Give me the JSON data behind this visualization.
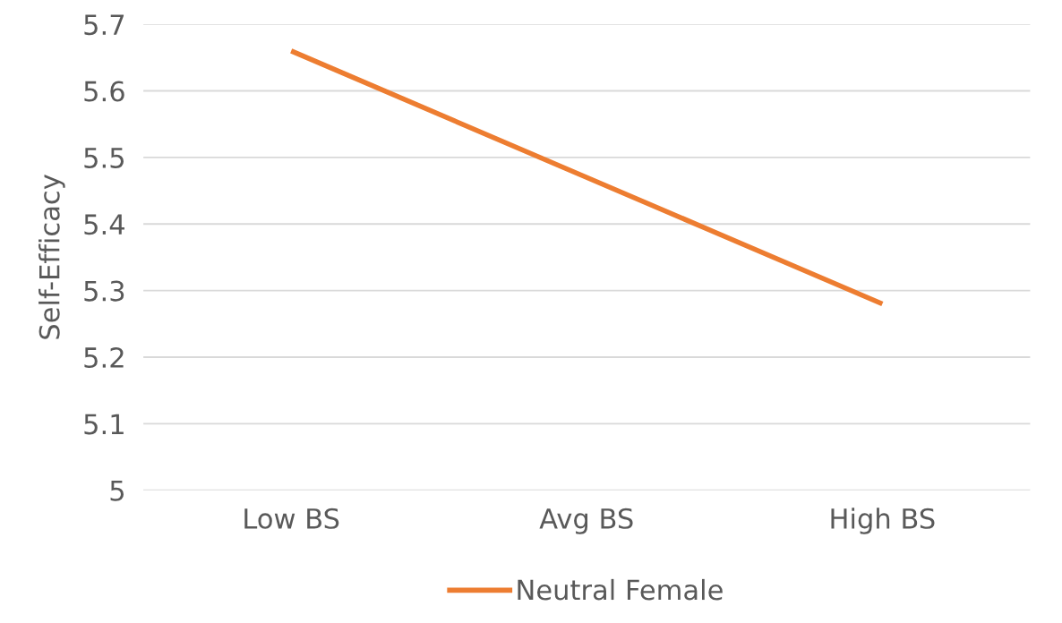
{
  "chart_data": {
    "type": "line",
    "ylabel": "Self-Efficacy",
    "categories": [
      "Low BS",
      "Avg BS",
      "High BS"
    ],
    "series": [
      {
        "name": "Neutral Female",
        "color": "#ed7d31",
        "values": [
          5.66,
          5.47,
          5.28
        ]
      }
    ],
    "ylim": [
      5,
      5.7
    ],
    "yticks": [
      5,
      5.1,
      5.2,
      5.3,
      5.4,
      5.5,
      5.6,
      5.7
    ],
    "grid": "y",
    "legend": "bottom",
    "marker": "none",
    "line_style": "solid"
  }
}
